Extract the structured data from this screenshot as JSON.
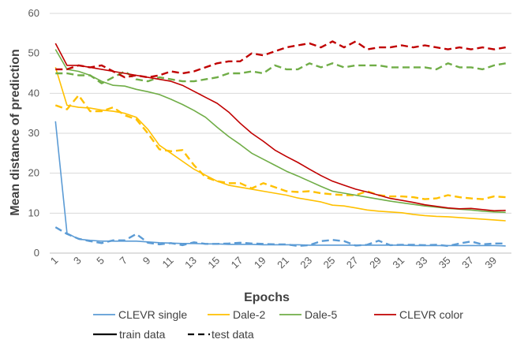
{
  "chart_data": {
    "type": "line",
    "xlabel": "Epochs",
    "ylabel": "Mean distance of prediction",
    "xlim": [
      1,
      40
    ],
    "ylim": [
      0,
      60
    ],
    "yticks": [
      0,
      10,
      20,
      30,
      40,
      50,
      60
    ],
    "xtick_labels": [
      1,
      3,
      5,
      7,
      9,
      11,
      13,
      15,
      17,
      19,
      21,
      23,
      25,
      27,
      29,
      31,
      33,
      35,
      37,
      39
    ],
    "grid": "horizontal",
    "legend": "bottom",
    "legend_style_labels": {
      "train": "train data",
      "test": "test data"
    },
    "x": [
      1,
      2,
      3,
      4,
      5,
      6,
      7,
      8,
      9,
      10,
      11,
      12,
      13,
      14,
      15,
      16,
      17,
      18,
      19,
      20,
      21,
      22,
      23,
      24,
      25,
      26,
      27,
      28,
      29,
      30,
      31,
      32,
      33,
      34,
      35,
      36,
      37,
      38,
      39,
      40
    ],
    "series": [
      {
        "name": "CLEVR single",
        "color": "#5b9bd5",
        "train": [
          33,
          5,
          3.5,
          3.2,
          3,
          3,
          3,
          3,
          2.8,
          2.6,
          2.5,
          2.4,
          2.4,
          2.3,
          2.3,
          2.2,
          2.2,
          2.2,
          2.1,
          2.1,
          2.1,
          2.1,
          2,
          2,
          2,
          2,
          2,
          2,
          2,
          2,
          2,
          1.9,
          1.9,
          1.9,
          1.9,
          1.9,
          1.9,
          1.9,
          1.9,
          1.8
        ],
        "test": [
          6.5,
          4.8,
          3.6,
          3,
          2.5,
          3.2,
          3.2,
          4.8,
          2.6,
          2.2,
          2.5,
          2,
          2.7,
          2.3,
          2.3,
          2.4,
          2.6,
          2.4,
          2.3,
          2.2,
          2.2,
          1.8,
          2,
          3,
          3.3,
          3,
          1.9,
          2.1,
          3.1,
          2,
          2.1,
          2.1,
          2,
          2.1,
          1.8,
          2.4,
          2.9,
          2.2,
          2.4,
          2.4
        ]
      },
      {
        "name": "Dale-2",
        "color": "#ffc000",
        "train": [
          46.5,
          37,
          36.5,
          36.3,
          35.8,
          35.5,
          35,
          34,
          31,
          27,
          25,
          23,
          21,
          19.5,
          18,
          17,
          16.5,
          16,
          15.5,
          15,
          14.5,
          13.8,
          13.3,
          12.8,
          12,
          11.8,
          11.3,
          10.8,
          10.5,
          10.3,
          10.1,
          9.7,
          9.4,
          9.2,
          9.1,
          8.9,
          8.7,
          8.5,
          8.3,
          8.1
        ],
        "test": [
          37,
          36,
          39.5,
          35.5,
          35.5,
          36.5,
          34.5,
          33.5,
          30,
          26,
          25.5,
          25.8,
          22,
          19,
          18,
          17.5,
          17.5,
          16.2,
          17.5,
          16.5,
          15.5,
          15.3,
          15.5,
          15,
          14.7,
          14.5,
          14.5,
          15.5,
          14.5,
          14.2,
          14.2,
          14,
          13.5,
          13.7,
          14.5,
          14,
          13.7,
          13.5,
          14.2,
          14
        ]
      },
      {
        "name": "Dale-5",
        "color": "#70ad47",
        "train": [
          51,
          46,
          45.5,
          44.5,
          43,
          42,
          41.8,
          41,
          40.4,
          39.7,
          38.5,
          37.2,
          35.7,
          34,
          31.5,
          29.2,
          27.2,
          25,
          23.5,
          22,
          20.5,
          19.3,
          18,
          16.7,
          15.5,
          15,
          14.5,
          14,
          13.5,
          13,
          12.6,
          12.2,
          11.8,
          11.5,
          11.2,
          11,
          10.8,
          10.5,
          10.3,
          10.2
        ],
        "test": [
          45,
          45,
          44.5,
          44.5,
          42.5,
          44,
          45.5,
          43.5,
          43,
          44,
          43.5,
          43,
          43,
          43.5,
          44,
          45,
          45,
          45.5,
          45,
          47,
          46,
          46,
          47.5,
          46.5,
          47.5,
          46.5,
          47,
          47,
          47,
          46.5,
          46.5,
          46.5,
          46.5,
          46,
          47.5,
          46.5,
          46.5,
          46,
          47,
          47.5
        ]
      },
      {
        "name": "CLEVR color",
        "color": "#c00000",
        "train": [
          52.5,
          47,
          47,
          46.5,
          46,
          45.5,
          45,
          44.5,
          44,
          43.5,
          43,
          42,
          40.5,
          39,
          37.5,
          35.3,
          32.5,
          30,
          28,
          25.8,
          24.2,
          22.7,
          21,
          19.4,
          18,
          17,
          16,
          15.3,
          14.5,
          13.7,
          13.2,
          12.7,
          12.1,
          11.7,
          11.3,
          11.1,
          11.2,
          10.9,
          10.6,
          10.7
        ],
        "test": [
          46,
          46,
          47,
          46.5,
          47,
          45.5,
          44,
          44.5,
          44,
          44.5,
          45.5,
          45,
          45.5,
          46.5,
          47.5,
          48,
          48,
          50,
          49.5,
          50.5,
          51.5,
          52,
          52.5,
          51.5,
          53,
          51.5,
          53,
          51,
          51.5,
          51.5,
          52,
          51.5,
          52,
          51.5,
          51,
          51.5,
          51,
          51.5,
          51,
          51.5
        ]
      }
    ]
  }
}
